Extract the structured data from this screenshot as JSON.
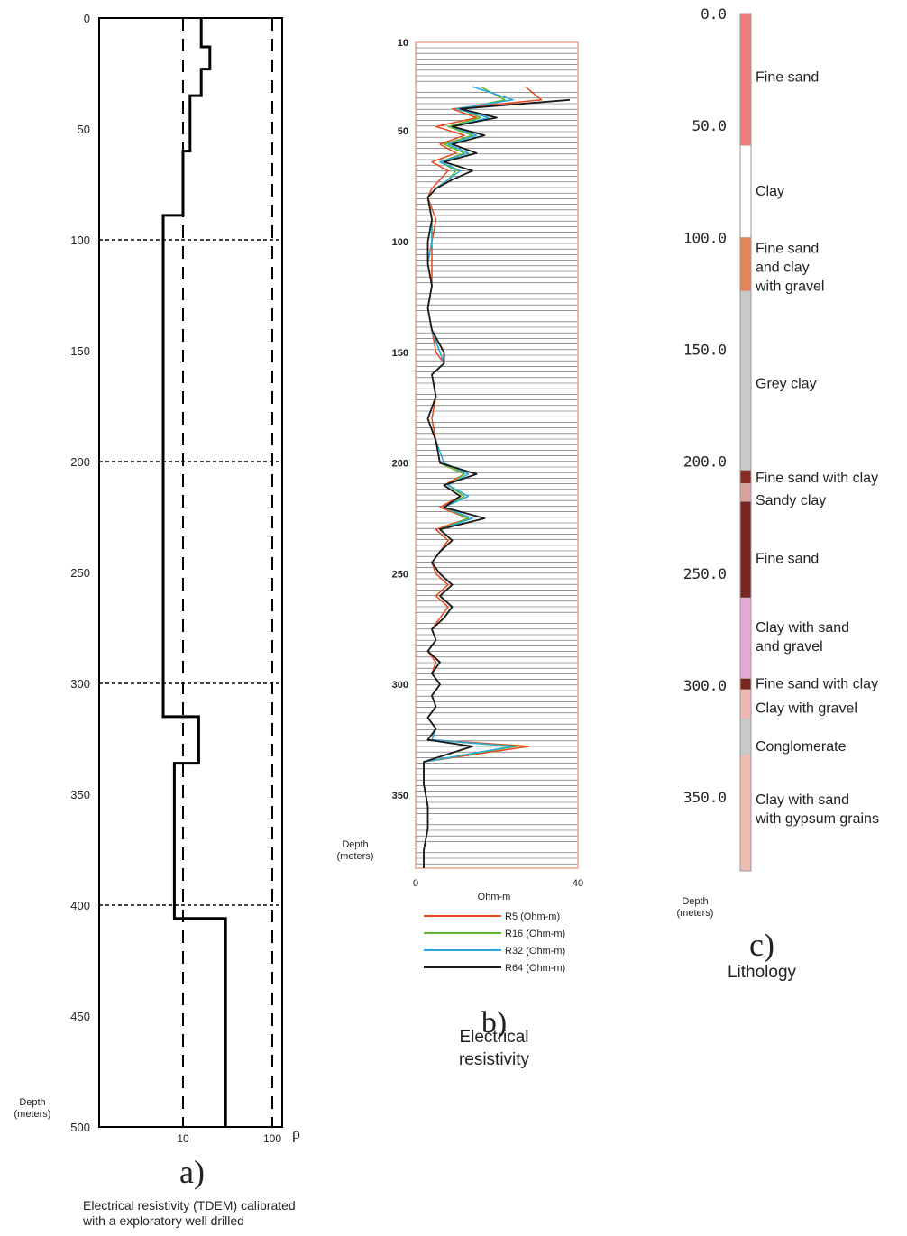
{
  "colors": {
    "R5": "#e8471c",
    "R16": "#5cb82e",
    "R32": "#2aa8de",
    "R64": "#1a1a1a",
    "panel_b_frame": "#e8a38f",
    "panel_b_grid": "#555555"
  },
  "chart_data": [
    {
      "type": "line",
      "panel": "a)",
      "ylabel": "Depth\n(meters)",
      "xlabel": "ρ",
      "x_scale": "log",
      "y_ticks": [
        "0",
        "50",
        "100",
        "150",
        "200",
        "250",
        "300",
        "350",
        "400",
        "450",
        "500"
      ],
      "x_ticks": [
        "10",
        "100"
      ],
      "ylim": [
        0,
        500
      ],
      "caption_lines": [
        "Electrical resistivity (TDEM) calibrated",
        "with a exploratory well drilled"
      ],
      "grid_dashed_depths": [
        100,
        200,
        300,
        400
      ],
      "reference_verticals": [
        10,
        100
      ],
      "series": [
        {
          "style": "step",
          "points": [
            [
              16,
              0
            ],
            [
              16,
              13
            ],
            [
              20,
              13
            ],
            [
              20,
              23
            ],
            [
              16,
              23
            ],
            [
              16,
              35
            ],
            [
              12,
              35
            ],
            [
              12,
              60
            ],
            [
              10,
              60
            ],
            [
              10,
              89
            ],
            [
              6,
              89
            ],
            [
              6,
              315
            ],
            [
              15,
              315
            ],
            [
              15,
              336
            ],
            [
              8,
              336
            ],
            [
              8,
              406
            ],
            [
              30,
              406
            ],
            [
              30,
              500
            ]
          ]
        }
      ]
    },
    {
      "type": "line",
      "panel": "b)",
      "title_lines": [
        "Electrical",
        "resistivity"
      ],
      "ylabel": "Depth\n(meters)",
      "xlabel": "Ohm-m",
      "x_ticks": [
        "0",
        "40"
      ],
      "y_ticks": [
        "10",
        "50",
        "100",
        "150",
        "200",
        "250",
        "300",
        "350"
      ],
      "xlim": [
        0,
        40
      ],
      "ylim": [
        10,
        383
      ],
      "legend_position": "bottom",
      "series": [
        {
          "name": "R5 (Ohm-m)",
          "color_key": "R5",
          "depth": [
            30,
            36,
            40,
            44,
            48,
            52,
            56,
            60,
            64,
            68,
            72,
            76,
            80,
            90,
            100,
            110,
            120,
            130,
            140,
            150,
            155,
            160,
            170,
            180,
            190,
            200,
            205,
            210,
            215,
            220,
            225,
            230,
            235,
            240,
            245,
            250,
            255,
            260,
            265,
            270,
            275,
            280,
            285,
            290,
            295,
            300,
            305,
            310,
            315,
            320,
            325,
            328,
            335,
            345,
            355,
            365,
            375,
            383
          ],
          "values": [
            27,
            31,
            9,
            15,
            5,
            12,
            6,
            10,
            4,
            8,
            6,
            4,
            3,
            5,
            4,
            4,
            4,
            3,
            4,
            5,
            7,
            4,
            5,
            4,
            5,
            6,
            12,
            7,
            11,
            6,
            13,
            5,
            8,
            6,
            4,
            5,
            8,
            5,
            8,
            6,
            4,
            5,
            3,
            5,
            4,
            6,
            4,
            5,
            3,
            5,
            4,
            28,
            2,
            2,
            3,
            3,
            2,
            2
          ]
        },
        {
          "name": "R16 (Ohm-m)",
          "color_key": "R16",
          "depth": [
            30,
            36,
            40,
            44,
            48,
            52,
            56,
            60,
            64,
            68,
            72,
            76,
            80,
            90,
            100,
            110,
            120,
            130,
            140,
            150,
            155,
            160,
            170,
            180,
            190,
            200,
            205,
            210,
            215,
            220,
            225,
            230,
            235,
            240,
            245,
            250,
            255,
            260,
            265,
            270,
            275,
            280,
            285,
            290,
            295,
            300,
            305,
            310,
            315,
            320,
            325,
            328,
            335,
            345,
            355,
            365,
            375,
            383
          ],
          "values": [
            16,
            22,
            11,
            16,
            8,
            14,
            7,
            12,
            6,
            10,
            8,
            5,
            3,
            4,
            4,
            3,
            4,
            3,
            4,
            6,
            7,
            4,
            5,
            3,
            5,
            6,
            12,
            8,
            12,
            7,
            13,
            6,
            9,
            6,
            4,
            6,
            9,
            6,
            9,
            7,
            4,
            5,
            3,
            6,
            4,
            6,
            4,
            5,
            3,
            5,
            3,
            25,
            2,
            2,
            3,
            3,
            2,
            2
          ]
        },
        {
          "name": "R32 (Ohm-m)",
          "color_key": "R32",
          "depth": [
            30,
            36,
            40,
            44,
            48,
            52,
            56,
            60,
            64,
            68,
            72,
            76,
            80,
            90,
            100,
            110,
            120,
            130,
            140,
            150,
            155,
            160,
            170,
            180,
            190,
            200,
            205,
            210,
            215,
            220,
            225,
            230,
            235,
            240,
            245,
            250,
            255,
            260,
            265,
            270,
            275,
            280,
            285,
            290,
            295,
            300,
            305,
            310,
            315,
            320,
            325,
            328,
            335,
            345,
            355,
            365,
            375,
            383
          ],
          "values": [
            14,
            24,
            10,
            18,
            9,
            15,
            8,
            13,
            6,
            11,
            8,
            5,
            3,
            4,
            4,
            3,
            4,
            3,
            4,
            6,
            7,
            4,
            5,
            3,
            5,
            7,
            13,
            8,
            13,
            7,
            14,
            6,
            9,
            6,
            4,
            6,
            9,
            6,
            9,
            7,
            4,
            5,
            3,
            6,
            4,
            6,
            4,
            5,
            3,
            5,
            4,
            24,
            2,
            2,
            3,
            3,
            2,
            2
          ]
        },
        {
          "name": "R64 (Ohm-m)",
          "color_key": "R64",
          "depth": [
            36,
            40,
            44,
            48,
            52,
            56,
            60,
            64,
            68,
            72,
            76,
            80,
            90,
            100,
            110,
            120,
            130,
            140,
            150,
            155,
            160,
            170,
            180,
            190,
            200,
            205,
            210,
            215,
            220,
            225,
            230,
            235,
            240,
            245,
            250,
            255,
            260,
            265,
            270,
            275,
            280,
            285,
            290,
            295,
            300,
            305,
            310,
            315,
            320,
            325,
            328,
            335,
            345,
            355,
            365,
            375,
            383
          ],
          "values": [
            38,
            11,
            20,
            9,
            17,
            9,
            15,
            7,
            14,
            9,
            5,
            3,
            4,
            3,
            3,
            4,
            3,
            4,
            7,
            7,
            4,
            5,
            3,
            5,
            6,
            15,
            7,
            11,
            7,
            17,
            6,
            9,
            6,
            4,
            6,
            9,
            6,
            9,
            7,
            4,
            5,
            3,
            6,
            4,
            6,
            4,
            5,
            3,
            5,
            3,
            14,
            2,
            2,
            3,
            3,
            2,
            2
          ]
        }
      ]
    },
    {
      "type": "table",
      "panel": "c)",
      "title": "Lithology",
      "ylabel": "Depth\n(meters)",
      "y_ticks": [
        "0.0",
        "50.0",
        "100.0",
        "150.0",
        "200.0",
        "250.0",
        "300.0",
        "350.0"
      ],
      "ylim": [
        0,
        383
      ],
      "layers": [
        {
          "top": 0,
          "bottom": 59,
          "lines": [
            "Fine sand"
          ],
          "color": "#ef7c7c",
          "label_depth": 28
        },
        {
          "top": 59,
          "bottom": 100,
          "lines": [
            "Clay"
          ],
          "color": "#ffffff",
          "label_depth": 79
        },
        {
          "top": 100,
          "bottom": 124,
          "lines": [
            "Fine sand",
            "and clay",
            "with gravel"
          ],
          "color": "#e78458",
          "label_depth": 113
        },
        {
          "top": 124,
          "bottom": 204,
          "lines": [
            "Grey clay"
          ],
          "color": "#c9c9c9",
          "label_depth": 165
        },
        {
          "top": 204,
          "bottom": 210,
          "lines": [
            "Fine sand with clay"
          ],
          "color": "#8a2a24",
          "label_depth": 207
        },
        {
          "top": 210,
          "bottom": 218,
          "lines": [
            "Sandy clay"
          ],
          "color": "#d9a19a",
          "label_depth": 217
        },
        {
          "top": 218,
          "bottom": 261,
          "lines": [
            "Fine sand"
          ],
          "color": "#7a2620",
          "label_depth": 243
        },
        {
          "top": 261,
          "bottom": 297,
          "lines": [
            "Clay with sand",
            "and gravel"
          ],
          "color": "#e6a6d6",
          "label_depth": 278
        },
        {
          "top": 297,
          "bottom": 302,
          "lines": [
            "Fine sand with clay"
          ],
          "color": "#7a2620",
          "label_depth": 299
        },
        {
          "top": 302,
          "bottom": 315,
          "lines": [
            "Clay with gravel"
          ],
          "color": "#f0b8b0",
          "label_depth": 310
        },
        {
          "top": 315,
          "bottom": 331,
          "lines": [
            "Conglomerate"
          ],
          "color": "#c9c9c9",
          "label_depth": 327
        },
        {
          "top": 331,
          "bottom": 383,
          "lines": [
            "Clay with sand",
            "with gypsum grains"
          ],
          "color": "#efbcb2",
          "label_depth": 355
        }
      ]
    }
  ]
}
